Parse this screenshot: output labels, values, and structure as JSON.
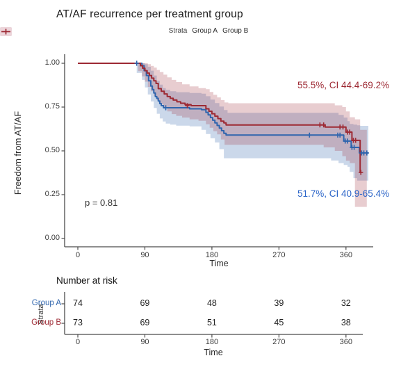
{
  "title": "AT/AF recurrence per treatment group",
  "legend": {
    "title": "Strata"
  },
  "annotations": {
    "p_value": "p = 0.81",
    "group_b_estimate": "55.5%, CI 44.4-69.2%",
    "group_a_estimate": "51.7%, CI 40.9-65.4%"
  },
  "chart_data": {
    "type": "line",
    "subtype": "kaplan-meier-step",
    "title": "AT/AF recurrence per treatment group",
    "xlabel": "Time",
    "ylabel": "Freedom from AT/AF",
    "xlim": [
      -18,
      397
    ],
    "ylim": [
      0,
      1.05
    ],
    "grid": false,
    "legend_position": "top",
    "xticks": [
      {
        "t": 0,
        "label": "0"
      },
      {
        "t": 90,
        "label": "90"
      },
      {
        "t": 180,
        "label": "180"
      },
      {
        "t": 270,
        "label": "270"
      },
      {
        "t": 360,
        "label": "360"
      }
    ],
    "yticks": [
      {
        "v": 1.0,
        "label": "1.00"
      },
      {
        "v": 0.75,
        "label": "0.75"
      },
      {
        "v": 0.5,
        "label": "0.50"
      },
      {
        "v": 0.25,
        "label": "0.25"
      },
      {
        "v": 0.0,
        "label": "0.00"
      }
    ],
    "colors": {
      "group_a_line": "#2e64ad",
      "group_b_line": "#9d2933",
      "group_a_band": "rgba(46,100,173,0.25)",
      "group_b_band": "rgba(157,41,51,0.23)",
      "group_a_key_bg": "#cfe0f2",
      "group_b_key_bg": "#ecd5da",
      "group_a_text": "#2a64c8",
      "group_b_text": "#9d2933",
      "axis": "#4a4a4a",
      "axis_text": "#3c3c3c"
    },
    "series": [
      {
        "name": "Group A",
        "steps": [
          [
            0,
            1
          ],
          [
            83,
            1
          ],
          [
            86,
            0.986
          ],
          [
            89,
            0.958
          ],
          [
            92,
            0.93
          ],
          [
            95,
            0.9
          ],
          [
            98,
            0.87
          ],
          [
            100,
            0.85
          ],
          [
            102,
            0.83
          ],
          [
            104,
            0.81
          ],
          [
            106,
            0.8
          ],
          [
            108,
            0.785
          ],
          [
            110,
            0.77
          ],
          [
            112,
            0.758
          ],
          [
            115,
            0.746
          ],
          [
            150,
            0.74
          ],
          [
            166,
            0.735
          ],
          [
            172,
            0.72
          ],
          [
            175,
            0.705
          ],
          [
            178,
            0.69
          ],
          [
            181,
            0.675
          ],
          [
            184,
            0.66
          ],
          [
            187,
            0.645
          ],
          [
            190,
            0.63
          ],
          [
            193,
            0.615
          ],
          [
            196,
            0.6
          ],
          [
            199,
            0.59
          ],
          [
            357,
            0.556
          ],
          [
            367,
            0.52
          ],
          [
            378,
            0.488
          ],
          [
            390,
            0.488
          ]
        ],
        "censors": [
          [
            79,
            1
          ],
          [
            118,
            0.746
          ],
          [
            311,
            0.59
          ],
          [
            349,
            0.59
          ],
          [
            352,
            0.59
          ],
          [
            359,
            0.556
          ],
          [
            362,
            0.556
          ],
          [
            368,
            0.52
          ],
          [
            371,
            0.52
          ],
          [
            381,
            0.488
          ],
          [
            384,
            0.488
          ],
          [
            388,
            0.488
          ]
        ],
        "band": [
          [
            79,
            1,
            1
          ],
          [
            86,
            1,
            0.945
          ],
          [
            90,
            0.995,
            0.905
          ],
          [
            94,
            0.98,
            0.862
          ],
          [
            98,
            0.958,
            0.822
          ],
          [
            102,
            0.93,
            0.782
          ],
          [
            106,
            0.9,
            0.745
          ],
          [
            110,
            0.878,
            0.712
          ],
          [
            114,
            0.858,
            0.685
          ],
          [
            118,
            0.848,
            0.668
          ],
          [
            124,
            0.84,
            0.656
          ],
          [
            132,
            0.835,
            0.65
          ],
          [
            150,
            0.83,
            0.644
          ],
          [
            166,
            0.826,
            0.64
          ],
          [
            172,
            0.812,
            0.62
          ],
          [
            178,
            0.793,
            0.596
          ],
          [
            184,
            0.773,
            0.572
          ],
          [
            190,
            0.753,
            0.548
          ],
          [
            196,
            0.733,
            0.51
          ],
          [
            201,
            0.717,
            0.458
          ],
          [
            340,
            0.717,
            0.458
          ],
          [
            350,
            0.705,
            0.445
          ],
          [
            357,
            0.69,
            0.43
          ],
          [
            362,
            0.67,
            0.42
          ],
          [
            365,
            0.654,
            0.409
          ],
          [
            370,
            0.65,
            0.38
          ],
          [
            375,
            0.646,
            0.345
          ],
          [
            379,
            0.643,
            0.33
          ],
          [
            390,
            0.64,
            0.33
          ]
        ],
        "estimate_at_365": "51.7%, CI 40.9-65.4%"
      },
      {
        "name": "Group B",
        "steps": [
          [
            0,
            1
          ],
          [
            81,
            1
          ],
          [
            84,
            0.986
          ],
          [
            87,
            0.972
          ],
          [
            90,
            0.958
          ],
          [
            93,
            0.944
          ],
          [
            96,
            0.93
          ],
          [
            99,
            0.915
          ],
          [
            102,
            0.9
          ],
          [
            105,
            0.885
          ],
          [
            108,
            0.855
          ],
          [
            112,
            0.84
          ],
          [
            116,
            0.825
          ],
          [
            120,
            0.81
          ],
          [
            124,
            0.8
          ],
          [
            128,
            0.79
          ],
          [
            133,
            0.78
          ],
          [
            138,
            0.772
          ],
          [
            144,
            0.764
          ],
          [
            152,
            0.758
          ],
          [
            172,
            0.74
          ],
          [
            176,
            0.726
          ],
          [
            180,
            0.712
          ],
          [
            184,
            0.698
          ],
          [
            188,
            0.684
          ],
          [
            192,
            0.67
          ],
          [
            196,
            0.66
          ],
          [
            199,
            0.648
          ],
          [
            332,
            0.636
          ],
          [
            360,
            0.607
          ],
          [
            368,
            0.56
          ],
          [
            379,
            0.377
          ],
          [
            381,
            0.377
          ]
        ],
        "censors": [
          [
            147,
            0.758
          ],
          [
            325,
            0.648
          ],
          [
            330,
            0.648
          ],
          [
            352,
            0.636
          ],
          [
            356,
            0.636
          ],
          [
            362,
            0.607
          ],
          [
            365,
            0.607
          ],
          [
            370,
            0.56
          ],
          [
            373,
            0.56
          ],
          [
            380,
            0.377
          ]
        ],
        "band": [
          [
            81,
            1,
            1
          ],
          [
            86,
            1,
            0.955
          ],
          [
            90,
            1,
            0.925
          ],
          [
            94,
            0.995,
            0.895
          ],
          [
            98,
            0.985,
            0.865
          ],
          [
            102,
            0.975,
            0.84
          ],
          [
            106,
            0.962,
            0.815
          ],
          [
            110,
            0.95,
            0.79
          ],
          [
            115,
            0.935,
            0.765
          ],
          [
            120,
            0.92,
            0.745
          ],
          [
            126,
            0.905,
            0.725
          ],
          [
            132,
            0.893,
            0.71
          ],
          [
            140,
            0.88,
            0.7
          ],
          [
            150,
            0.868,
            0.69
          ],
          [
            162,
            0.858,
            0.68
          ],
          [
            172,
            0.852,
            0.672
          ],
          [
            177,
            0.836,
            0.652
          ],
          [
            182,
            0.82,
            0.632
          ],
          [
            187,
            0.805,
            0.612
          ],
          [
            192,
            0.79,
            0.594
          ],
          [
            197,
            0.776,
            0.565
          ],
          [
            202,
            0.772,
            0.535
          ],
          [
            330,
            0.772,
            0.535
          ],
          [
            345,
            0.76,
            0.52
          ],
          [
            355,
            0.75,
            0.5
          ],
          [
            360,
            0.725,
            0.47
          ],
          [
            365,
            0.692,
            0.444
          ],
          [
            372,
            0.68,
            0.43
          ],
          [
            379,
            0.62,
            0.18
          ],
          [
            388,
            0.62,
            0.18
          ]
        ],
        "estimate_at_365": "55.5%, CI 44.4-69.2%"
      }
    ],
    "p_value": "p = 0.81"
  },
  "risk_table": {
    "title": "Number at risk",
    "axis_label": "Strata",
    "xlabel": "Time",
    "times": [
      0,
      90,
      180,
      270,
      360
    ],
    "rows": [
      {
        "label": "Group A",
        "values": [
          "74",
          "69",
          "48",
          "39",
          "32"
        ]
      },
      {
        "label": "Group B",
        "values": [
          "73",
          "69",
          "51",
          "45",
          "38"
        ]
      }
    ]
  }
}
